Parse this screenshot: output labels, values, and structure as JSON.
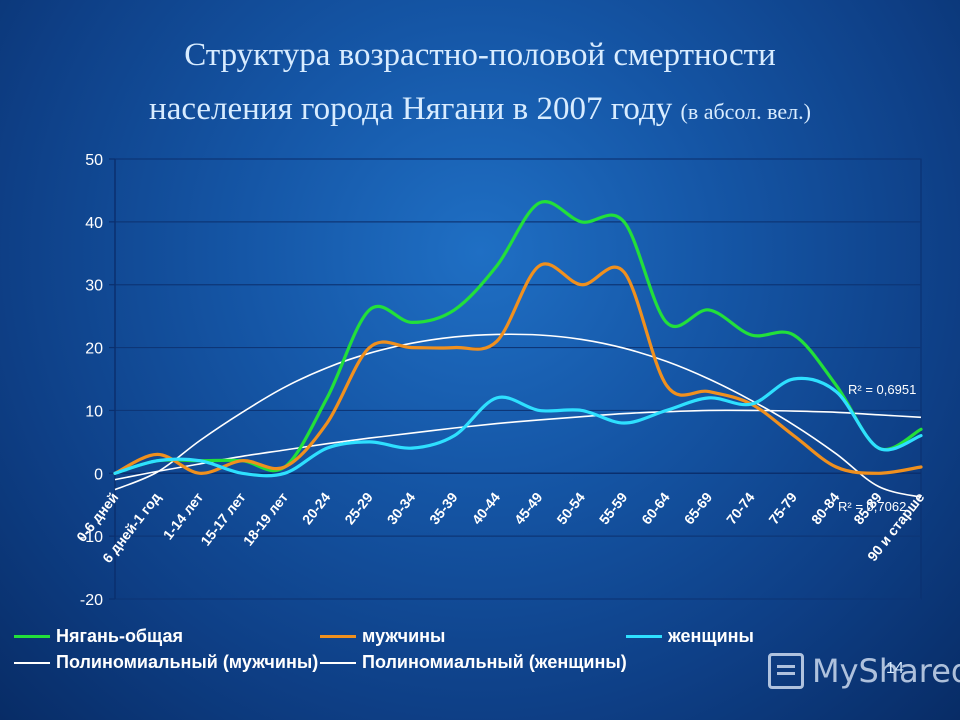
{
  "title": {
    "line1": "Структура возрастно-половой смертности",
    "line2": "населения города Нягани в 2007 году ",
    "line2_small": "(в абсол. вел.)"
  },
  "chart_data": {
    "type": "line",
    "categories": [
      "0-6 дней",
      "6 дней-1 год",
      "1-14 лет",
      "15-17 лет",
      "18-19 лет",
      "20-24",
      "25-29",
      "30-34",
      "35-39",
      "40-44",
      "45-49",
      "50-54",
      "55-59",
      "60-64",
      "65-69",
      "70-74",
      "75-79",
      "80-84",
      "85-89",
      "90 и старше"
    ],
    "ylim": [
      -20,
      50
    ],
    "yticks": [
      -20,
      -10,
      0,
      10,
      20,
      30,
      40,
      50
    ],
    "grid": true,
    "legend_position": "bottom",
    "series": [
      {
        "name": "Нягань-общая",
        "color": "#22e03a",
        "values": [
          0,
          2,
          2,
          2,
          1,
          12,
          26,
          24,
          26,
          33,
          43,
          40,
          40,
          24,
          26,
          22,
          22,
          14,
          4,
          7
        ]
      },
      {
        "name": "мужчины",
        "color": "#f0901e",
        "values": [
          0,
          3,
          0,
          2,
          1,
          8,
          20,
          20,
          20,
          21,
          33,
          30,
          32,
          14,
          13,
          11,
          6,
          1,
          0,
          1
        ]
      },
      {
        "name": "женщины",
        "color": "#2ee0ff",
        "values": [
          0,
          2,
          2,
          0,
          0,
          4,
          5,
          4,
          6,
          12,
          10,
          10,
          8,
          10,
          12,
          11,
          15,
          13,
          4,
          6
        ]
      }
    ],
    "trendlines": [
      {
        "name": "Полиномиальный (мужчины)",
        "color": "#ffffff",
        "values": [
          -2.6,
          0.2,
          5.2,
          9.7,
          13.7,
          16.8,
          19.1,
          20.7,
          21.7,
          22.1,
          22.0,
          21.3,
          19.9,
          17.8,
          15.0,
          11.6,
          7.7,
          3.1,
          -2.1,
          -3.8
        ],
        "r2_label": "R² = 0,6951"
      },
      {
        "name": "Полиномиальный (женщины)",
        "color": "#ffffff",
        "values": [
          -1.0,
          0.3,
          1.5,
          2.7,
          3.7,
          4.7,
          5.6,
          6.4,
          7.2,
          7.9,
          8.5,
          9.0,
          9.5,
          9.8,
          10.0,
          10.0,
          9.9,
          9.7,
          9.3,
          8.9
        ],
        "r2_label": "R² = 0,7062"
      }
    ]
  },
  "watermark": "MyShared",
  "page_number": "14"
}
